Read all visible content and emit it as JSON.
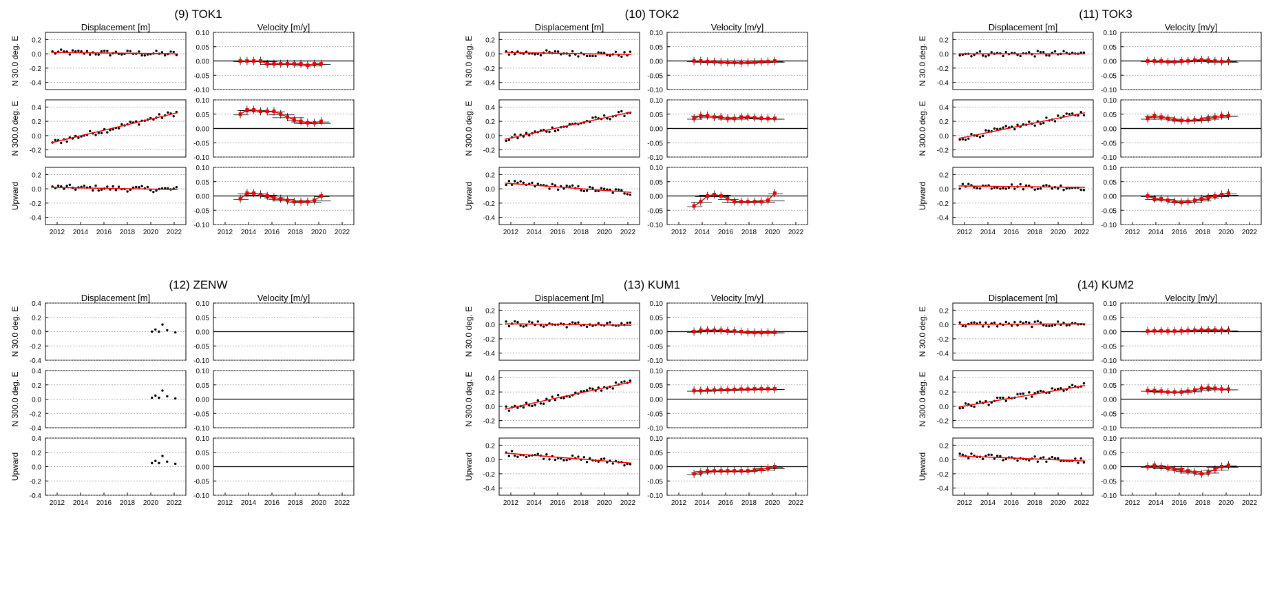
{
  "figure": {
    "col_titles": [
      "Displacement [m]",
      "Velocity [m/y]"
    ],
    "row_labels": [
      "N  30.0 deg. E",
      "N 300.0 deg. E",
      "Upward"
    ],
    "disp_ticks": [
      "0.4",
      "0.2",
      "0.0",
      "-0.2",
      "-0.4"
    ],
    "vel_ticks": [
      "0.10",
      "0.05",
      "0.00",
      "-0.05",
      "-0.10"
    ],
    "year_ticks": [
      "2012",
      "2014",
      "2016",
      "2018",
      "2020",
      "2022"
    ]
  },
  "chart_data": [
    {
      "type": "scatter",
      "title": "(9) TOK1",
      "xlim": [
        2011,
        2023
      ],
      "panels": [
        {
          "disp_ylim": [
            -0.5,
            0.3
          ],
          "vel_ylim": [
            -0.1,
            0.1
          ],
          "disp_trend": [
            0.02,
            0.0
          ],
          "velocity_series": [
            0.0,
            0.0,
            0.0,
            0.0,
            -0.01,
            -0.01,
            -0.01,
            -0.01,
            -0.01,
            -0.01,
            -0.015,
            -0.01,
            -0.01
          ]
        },
        {
          "disp_ylim": [
            -0.3,
            0.5
          ],
          "vel_ylim": [
            -0.1,
            0.1
          ],
          "disp_trend": [
            -0.1,
            0.32
          ],
          "velocity_series": [
            0.05,
            0.065,
            0.065,
            0.06,
            0.06,
            0.06,
            0.05,
            0.04,
            0.03,
            0.025,
            0.02,
            0.02,
            0.025
          ]
        },
        {
          "disp_ylim": [
            -0.5,
            0.3
          ],
          "vel_ylim": [
            -0.1,
            0.1
          ],
          "disp_trend": [
            0.02,
            -0.01
          ],
          "velocity_series": [
            -0.01,
            0.01,
            0.01,
            0.005,
            0.0,
            -0.005,
            -0.01,
            -0.015,
            -0.02,
            -0.02,
            -0.02,
            -0.015,
            0.0
          ]
        }
      ]
    },
    {
      "type": "scatter",
      "title": "(10) TOK2",
      "xlim": [
        2011,
        2023
      ],
      "panels": [
        {
          "disp_ylim": [
            -0.5,
            0.3
          ],
          "vel_ylim": [
            -0.1,
            0.1
          ],
          "disp_trend": [
            0.02,
            -0.01
          ],
          "velocity_series": [
            0.0,
            0.0,
            -0.002,
            -0.003,
            -0.004,
            -0.005,
            -0.005,
            -0.006,
            -0.005,
            -0.004,
            -0.003,
            -0.002,
            0.0
          ]
        },
        {
          "disp_ylim": [
            -0.3,
            0.5
          ],
          "vel_ylim": [
            -0.1,
            0.1
          ],
          "disp_trend": [
            -0.05,
            0.33
          ],
          "velocity_series": [
            0.035,
            0.045,
            0.045,
            0.04,
            0.04,
            0.035,
            0.035,
            0.04,
            0.04,
            0.038,
            0.036,
            0.035,
            0.035
          ]
        },
        {
          "disp_ylim": [
            -0.5,
            0.3
          ],
          "vel_ylim": [
            -0.1,
            0.1
          ],
          "disp_trend": [
            0.08,
            -0.05
          ],
          "velocity_series": [
            -0.035,
            -0.02,
            0.0,
            0.005,
            0.0,
            -0.01,
            -0.02,
            -0.02,
            -0.02,
            -0.02,
            -0.02,
            -0.015,
            0.01
          ]
        }
      ]
    },
    {
      "type": "scatter",
      "title": "(11) TOK3",
      "xlim": [
        2011,
        2023
      ],
      "panels": [
        {
          "disp_ylim": [
            -0.5,
            0.3
          ],
          "vel_ylim": [
            -0.1,
            0.1
          ],
          "disp_trend": [
            0.0,
            0.0
          ],
          "velocity_series": [
            0.0,
            0.0,
            0.0,
            -0.003,
            -0.003,
            0.0,
            0.0,
            0.003,
            0.004,
            0.003,
            0.0,
            -0.002,
            0.0
          ]
        },
        {
          "disp_ylim": [
            -0.3,
            0.5
          ],
          "vel_ylim": [
            -0.1,
            0.1
          ],
          "disp_trend": [
            -0.04,
            0.32
          ],
          "velocity_series": [
            0.035,
            0.045,
            0.04,
            0.035,
            0.03,
            0.028,
            0.028,
            0.03,
            0.032,
            0.035,
            0.04,
            0.045,
            0.045
          ]
        },
        {
          "disp_ylim": [
            -0.5,
            0.3
          ],
          "vel_ylim": [
            -0.1,
            0.1
          ],
          "disp_trend": [
            0.04,
            0.02
          ],
          "velocity_series": [
            0.0,
            -0.01,
            -0.01,
            -0.015,
            -0.02,
            -0.022,
            -0.02,
            -0.015,
            -0.01,
            -0.005,
            0.0,
            0.005,
            0.01
          ]
        }
      ]
    },
    {
      "type": "scatter",
      "title": "(12) ZENW",
      "xlim": [
        2011,
        2023
      ],
      "panels": [
        {
          "disp_ylim": [
            -0.4,
            0.4
          ],
          "vel_ylim": [
            -0.1,
            0.1
          ],
          "disp_trend": [],
          "velocity_series": []
        },
        {
          "disp_ylim": [
            -0.4,
            0.4
          ],
          "vel_ylim": [
            -0.1,
            0.1
          ],
          "disp_trend": [],
          "velocity_series": []
        },
        {
          "disp_ylim": [
            -0.4,
            0.4
          ],
          "vel_ylim": [
            -0.1,
            0.1
          ],
          "disp_trend": [],
          "velocity_series": []
        }
      ]
    },
    {
      "type": "scatter",
      "title": "(13) KUM1",
      "xlim": [
        2011,
        2023
      ],
      "panels": [
        {
          "disp_ylim": [
            -0.5,
            0.3
          ],
          "vel_ylim": [
            -0.1,
            0.1
          ],
          "disp_trend": [
            0.01,
            -0.01
          ],
          "velocity_series": [
            0.0,
            0.005,
            0.005,
            0.005,
            0.005,
            0.003,
            0.002,
            0.0,
            -0.002,
            -0.003,
            -0.003,
            -0.002,
            -0.002
          ]
        },
        {
          "disp_ylim": [
            -0.3,
            0.5
          ],
          "vel_ylim": [
            -0.1,
            0.1
          ],
          "disp_trend": [
            -0.04,
            0.34
          ],
          "velocity_series": [
            0.03,
            0.03,
            0.032,
            0.032,
            0.033,
            0.033,
            0.034,
            0.035,
            0.035,
            0.036,
            0.036,
            0.036,
            0.036
          ]
        },
        {
          "disp_ylim": [
            -0.5,
            0.3
          ],
          "vel_ylim": [
            -0.1,
            0.1
          ],
          "disp_trend": [
            0.09,
            -0.05
          ],
          "velocity_series": [
            -0.025,
            -0.02,
            -0.015,
            -0.015,
            -0.015,
            -0.015,
            -0.015,
            -0.015,
            -0.015,
            -0.012,
            -0.01,
            -0.005,
            0.0
          ]
        }
      ]
    },
    {
      "type": "scatter",
      "title": "(14) KUM2",
      "xlim": [
        2011,
        2023
      ],
      "panels": [
        {
          "disp_ylim": [
            -0.5,
            0.3
          ],
          "vel_ylim": [
            -0.1,
            0.1
          ],
          "disp_trend": [
            0.0,
            0.01
          ],
          "velocity_series": [
            0.002,
            0.003,
            0.003,
            0.002,
            0.002,
            0.003,
            0.004,
            0.005,
            0.006,
            0.006,
            0.006,
            0.005,
            0.005
          ]
        },
        {
          "disp_ylim": [
            -0.3,
            0.5
          ],
          "vel_ylim": [
            -0.1,
            0.1
          ],
          "disp_trend": [
            -0.01,
            0.29
          ],
          "velocity_series": [
            0.03,
            0.03,
            0.028,
            0.025,
            0.025,
            0.025,
            0.028,
            0.032,
            0.038,
            0.04,
            0.038,
            0.035,
            0.035
          ]
        },
        {
          "disp_ylim": [
            -0.5,
            0.3
          ],
          "vel_ylim": [
            -0.1,
            0.1
          ],
          "disp_trend": [
            0.05,
            -0.02
          ],
          "velocity_series": [
            0.0,
            0.005,
            0.0,
            -0.005,
            -0.01,
            -0.01,
            -0.015,
            -0.02,
            -0.025,
            -0.02,
            -0.01,
            0.0,
            0.005
          ]
        }
      ]
    }
  ]
}
